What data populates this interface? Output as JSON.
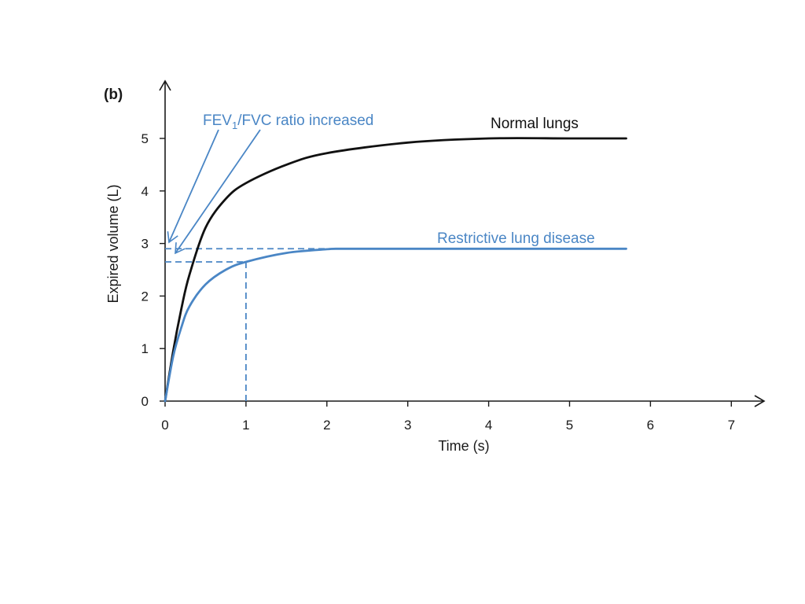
{
  "panel_label": "(b)",
  "colors": {
    "normal": "#111111",
    "restrictive": "#4a86c5",
    "axis": "#1a1a1a"
  },
  "chart_data": {
    "type": "line",
    "title": "",
    "xlabel": "Time (s)",
    "ylabel": "Expired volume (L)",
    "xlim": [
      0,
      7
    ],
    "ylim": [
      0,
      5
    ],
    "xticks": [
      "0",
      "1",
      "2",
      "3",
      "4",
      "5",
      "6",
      "7"
    ],
    "yticks": [
      "0",
      "1",
      "2",
      "3",
      "4",
      "5"
    ],
    "grid": false,
    "series": [
      {
        "name": "Normal lungs",
        "color": "#111111",
        "x": [
          0,
          0.1,
          0.2,
          0.3,
          0.5,
          0.75,
          1.0,
          1.5,
          2.0,
          3.0,
          4.0,
          5.0,
          5.7
        ],
        "y": [
          0,
          0.95,
          1.75,
          2.4,
          3.3,
          3.85,
          4.15,
          4.5,
          4.72,
          4.92,
          5.0,
          5.0,
          5.0
        ]
      },
      {
        "name": "Restrictive lung disease",
        "color": "#4a86c5",
        "x": [
          0,
          0.1,
          0.2,
          0.3,
          0.5,
          0.75,
          1.0,
          1.5,
          2.0,
          2.2,
          3.0,
          4.0,
          5.0,
          5.7
        ],
        "y": [
          0,
          0.85,
          1.4,
          1.8,
          2.22,
          2.5,
          2.65,
          2.82,
          2.89,
          2.9,
          2.9,
          2.9,
          2.9,
          2.9
        ]
      }
    ],
    "annotations": {
      "ratio_text_main": "FEV",
      "ratio_text_sub": "1",
      "ratio_text_rest": "/FVC ratio increased",
      "fev1_time": 1,
      "fev1_volume": 2.65,
      "fvc_volume": 2.9
    }
  }
}
